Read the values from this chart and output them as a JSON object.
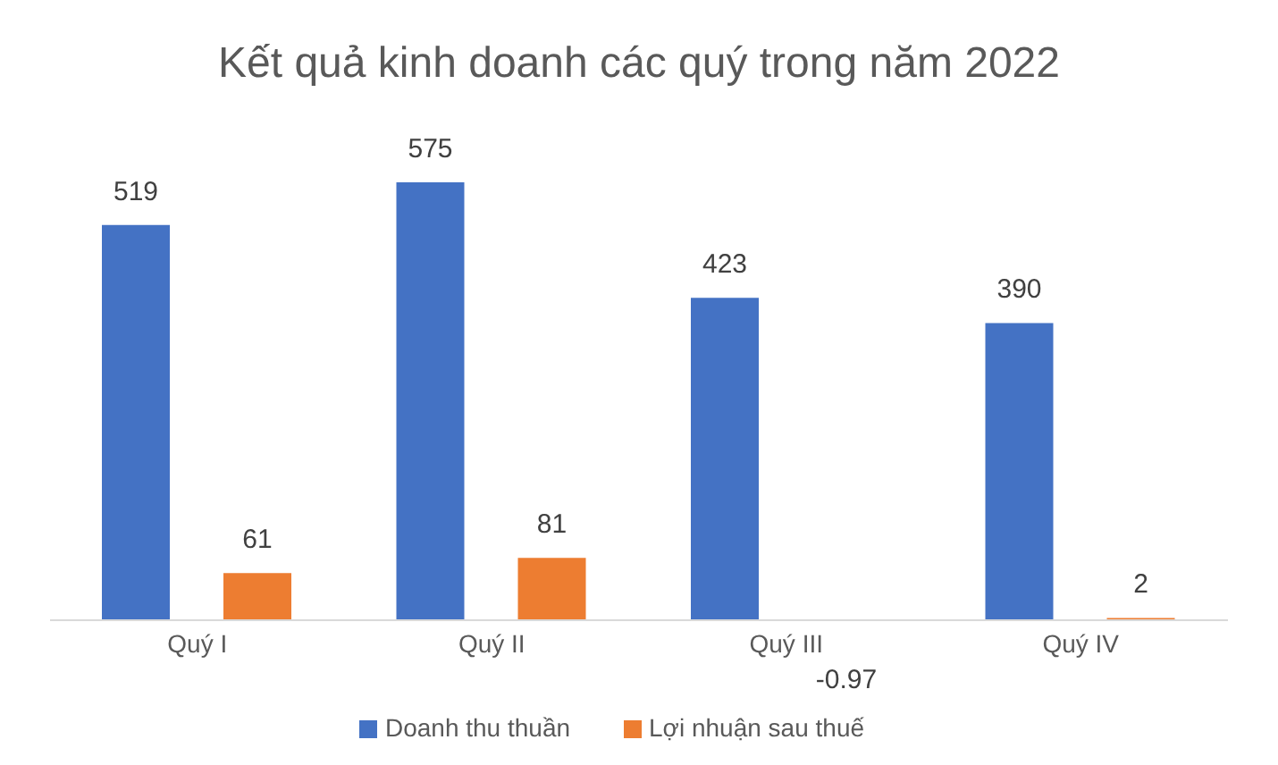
{
  "chart_data": {
    "type": "bar",
    "title": "Kết quả kinh doanh các quý trong năm 2022",
    "categories": [
      "Quý I",
      "Quý II",
      "Quý III",
      "Quý IV"
    ],
    "series": [
      {
        "name": "Doanh thu thuần",
        "color": "#4472c4",
        "values": [
          519,
          575,
          423,
          390
        ]
      },
      {
        "name": "Lợi nhuận sau thuế",
        "color": "#ed7d31",
        "values": [
          61,
          81,
          -0.97,
          2
        ]
      }
    ],
    "data_labels": true,
    "legend": "bottom"
  }
}
